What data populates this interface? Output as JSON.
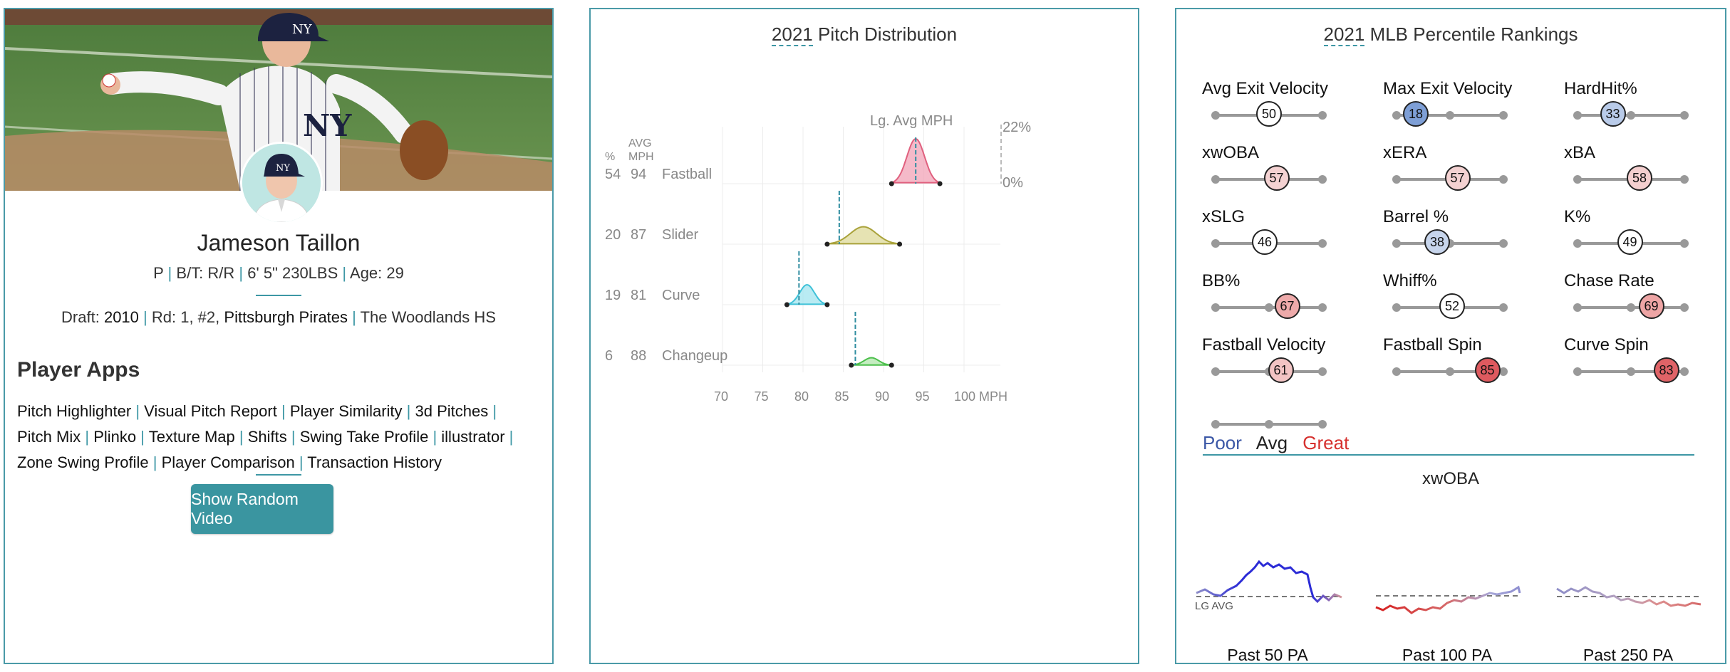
{
  "player": {
    "name": "Jameson Taillon",
    "position": "P",
    "bt": "B/T: R/R",
    "hw": "6' 5\" 230LBS",
    "age": "Age: 29",
    "draft_label": "Draft:",
    "draft_year": "2010",
    "round_label": "Rd: 1, #2,",
    "draft_team": "Pittsburgh Pirates",
    "school": "The Woodlands HS",
    "jersey_logo": "NY"
  },
  "apps": {
    "heading": "Player Apps",
    "links": [
      "Pitch Highlighter",
      "Visual Pitch Report",
      "Player Similarity",
      "3d Pitches",
      "Pitch Mix",
      "Plinko",
      "Texture Map",
      "Shifts",
      "Swing Take Profile",
      "illustrator",
      "Zone Swing Profile",
      "Player Comparison",
      "Transaction History"
    ],
    "button": "Show Random Video"
  },
  "pitch_dist": {
    "title_year": "2021",
    "title_rest": " Pitch Distribution",
    "col_pct": "%",
    "col_avg": "AVG",
    "col_mph": "MPH",
    "lg_label": "Lg. Avg MPH",
    "scale_top": "22%",
    "scale_bottom": "0%",
    "x_ticks": [
      "70",
      "75",
      "80",
      "85",
      "90",
      "95",
      "100 MPH"
    ],
    "pitches": [
      {
        "pct": "54",
        "mph": "94",
        "name": "Fastball",
        "color": "#e0607e",
        "fill": "#f2a9bb",
        "lg": 94,
        "lo": 91,
        "hi": 97,
        "peak": 18
      },
      {
        "pct": "20",
        "mph": "87",
        "name": "Slider",
        "color": "#a9a23a",
        "fill": "#e0dca0",
        "lg": 84.5,
        "lo": 83,
        "hi": 92,
        "peak": 7
      },
      {
        "pct": "19",
        "mph": "81",
        "name": "Curve",
        "color": "#3fc1d8",
        "fill": "#a8e6f0",
        "lg": 79.5,
        "lo": 78,
        "hi": 83,
        "peak": 8
      },
      {
        "pct": "6",
        "mph": "88",
        "name": "Changeup",
        "color": "#4bbf4b",
        "fill": "#b6e9b2",
        "lg": 86.5,
        "lo": 86,
        "hi": 91,
        "peak": 3
      }
    ]
  },
  "rankings": {
    "title_year": "2021",
    "title_rest": " MLB Percentile Rankings",
    "metrics": [
      {
        "label": "Avg Exit Velocity",
        "value": "50",
        "pct": 50,
        "color": "#ffffff"
      },
      {
        "label": "Max Exit Velocity",
        "value": "18",
        "pct": 18,
        "color": "#7e9fd6"
      },
      {
        "label": "HardHit%",
        "value": "33",
        "pct": 33,
        "color": "#b9cbe9"
      },
      {
        "label": "xwOBA",
        "value": "57",
        "pct": 57,
        "color": "#f4d2d2"
      },
      {
        "label": "xERA",
        "value": "57",
        "pct": 57,
        "color": "#f4d2d2"
      },
      {
        "label": "xBA",
        "value": "58",
        "pct": 58,
        "color": "#f4cfcf"
      },
      {
        "label": "xSLG",
        "value": "46",
        "pct": 46,
        "color": "#ffffff"
      },
      {
        "label": "Barrel %",
        "value": "38",
        "pct": 38,
        "color": "#c7d5ec"
      },
      {
        "label": "K%",
        "value": "49",
        "pct": 49,
        "color": "#ffffff"
      },
      {
        "label": "BB%",
        "value": "67",
        "pct": 67,
        "color": "#eeaaaa"
      },
      {
        "label": "Whiff%",
        "value": "52",
        "pct": 52,
        "color": "#ffffff"
      },
      {
        "label": "Chase Rate",
        "value": "69",
        "pct": 69,
        "color": "#eea5a5"
      },
      {
        "label": "Fastball Velocity",
        "value": "61",
        "pct": 61,
        "color": "#f2c4c4"
      },
      {
        "label": "Fastball Spin",
        "value": "85",
        "pct": 85,
        "color": "#de5a5f"
      },
      {
        "label": "Curve Spin",
        "value": "83",
        "pct": 83,
        "color": "#e06367"
      }
    ],
    "legend": [
      {
        "label": "Poor",
        "color": "#3b57a6"
      },
      {
        "label": "Avg",
        "color": "#222222"
      },
      {
        "label": "Great",
        "color": "#d6312f"
      }
    ],
    "rolling_title": "xwOBA",
    "lg_avg": "LG AVG",
    "windows": [
      "Past 50 PA",
      "Past 100 PA",
      "Past 250 PA"
    ]
  }
}
